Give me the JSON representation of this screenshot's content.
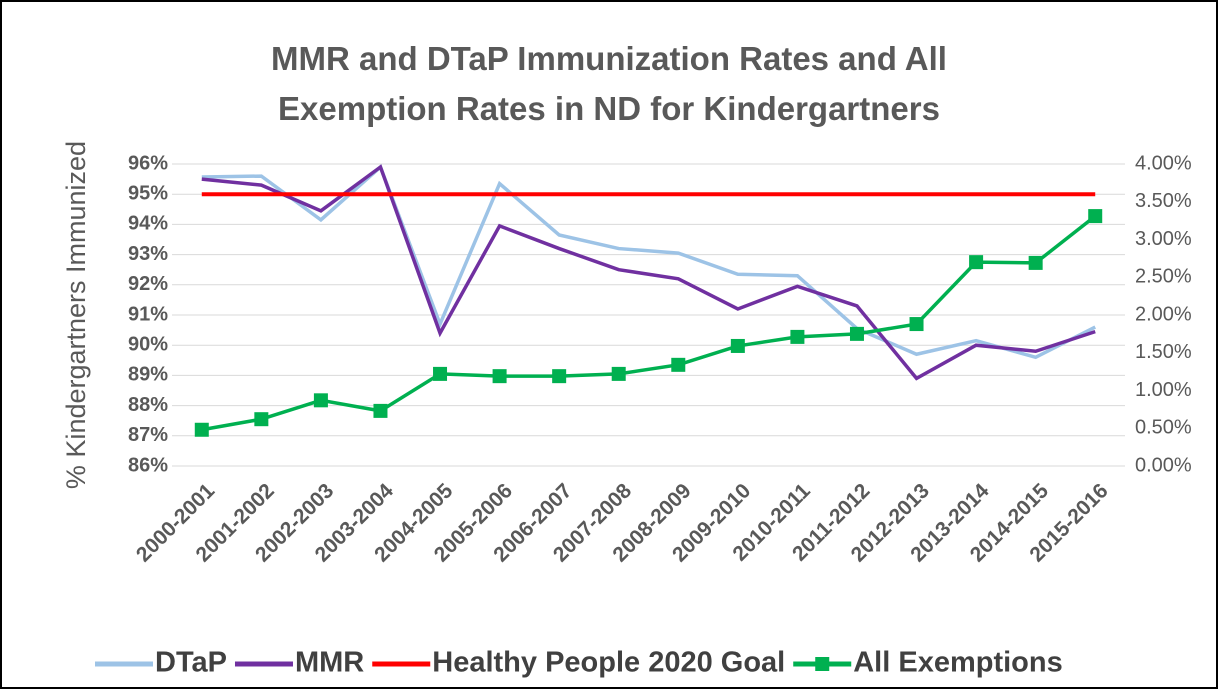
{
  "chart_data": {
    "type": "line",
    "title": "MMR and DTaP Immunization Rates and All Exemption Rates in ND for Kindergartners",
    "ylabel": "% Kindergartners Immunized",
    "categories": [
      "2000-2001",
      "2001-2002",
      "2002-2003",
      "2003-2004",
      "2004-2005",
      "2005-2006",
      "2006-2007",
      "2007-2008",
      "2008-2009",
      "2009-2010",
      "2010-2011",
      "2011-2012",
      "2012-2013",
      "2013-2014",
      "2014-2015",
      "2015-2016"
    ],
    "series": [
      {
        "name": "DTaP",
        "color": "#9dc3e6",
        "values": [
          95.57,
          95.6,
          94.15,
          95.9,
          90.7,
          95.35,
          93.65,
          93.2,
          93.05,
          92.35,
          92.3,
          90.55,
          89.7,
          90.15,
          89.6,
          90.6
        ]
      },
      {
        "name": "MMR",
        "color": "#7030a0",
        "values": [
          95.5,
          95.3,
          94.45,
          95.9,
          90.4,
          93.95,
          93.2,
          92.5,
          92.2,
          91.2,
          91.95,
          91.3,
          88.9,
          90.0,
          89.8,
          90.45
        ]
      },
      {
        "name": "Healthy People 2020 Goal",
        "color": "#ff0000",
        "values": [
          95,
          95,
          95,
          95,
          95,
          95,
          95,
          95,
          95,
          95,
          95,
          95,
          95,
          95,
          95,
          95
        ]
      },
      {
        "name": "All Exemptions",
        "color": "#00b050",
        "axis": "y2",
        "marker": "square",
        "values": [
          0.48,
          0.62,
          0.87,
          0.73,
          1.22,
          1.19,
          1.19,
          1.22,
          1.34,
          1.59,
          1.71,
          1.75,
          1.88,
          2.7,
          2.69,
          3.31
        ]
      }
    ],
    "ylim": [
      86,
      96
    ],
    "yticks": [
      {
        "value": 86,
        "label": "86%"
      },
      {
        "value": 87,
        "label": "87%"
      },
      {
        "value": 88,
        "label": "88%"
      },
      {
        "value": 89,
        "label": "89%"
      },
      {
        "value": 90,
        "label": "90%"
      },
      {
        "value": 91,
        "label": "91%"
      },
      {
        "value": 92,
        "label": "92%"
      },
      {
        "value": 93,
        "label": "93%"
      },
      {
        "value": 94,
        "label": "94%"
      },
      {
        "value": 95,
        "label": "95%"
      },
      {
        "value": 96,
        "label": "96%"
      }
    ],
    "y2lim": [
      0,
      4
    ],
    "y2ticks": [
      {
        "value": 0,
        "label": "0.00%"
      },
      {
        "value": 0.5,
        "label": "0.50%"
      },
      {
        "value": 1,
        "label": "1.00%"
      },
      {
        "value": 1.5,
        "label": "1.50%"
      },
      {
        "value": 2,
        "label": "2.00%"
      },
      {
        "value": 2.5,
        "label": "2.50%"
      },
      {
        "value": 3,
        "label": "3.00%"
      },
      {
        "value": 3.5,
        "label": "3.50%"
      },
      {
        "value": 4,
        "label": "4.00%"
      }
    ],
    "grid": true,
    "legend": "bottom"
  }
}
